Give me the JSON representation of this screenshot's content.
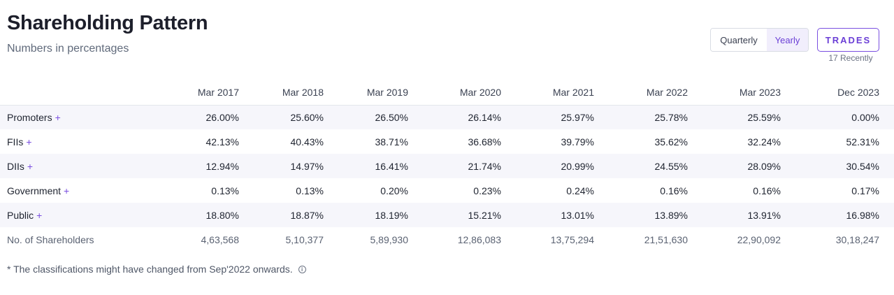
{
  "header": {
    "title": "Shareholding Pattern",
    "subtitle": "Numbers in percentages"
  },
  "toggle": {
    "options": [
      "Quarterly",
      "Yearly"
    ],
    "selected": "Yearly"
  },
  "trades": {
    "label": "TRADES",
    "note": "17 Recently"
  },
  "table": {
    "columns": [
      "",
      "Mar 2017",
      "Mar 2018",
      "Mar 2019",
      "Mar 2020",
      "Mar 2021",
      "Mar 2022",
      "Mar 2023",
      "Dec 2023"
    ],
    "rows": [
      {
        "label": "Promoters",
        "plus": "+",
        "values": [
          "26.00%",
          "25.60%",
          "26.50%",
          "26.14%",
          "25.97%",
          "25.78%",
          "25.59%",
          "0.00%"
        ]
      },
      {
        "label": "FIIs",
        "plus": "+",
        "values": [
          "42.13%",
          "40.43%",
          "38.71%",
          "36.68%",
          "39.79%",
          "35.62%",
          "32.24%",
          "52.31%"
        ]
      },
      {
        "label": "DIIs",
        "plus": "+",
        "values": [
          "12.94%",
          "14.97%",
          "16.41%",
          "21.74%",
          "20.99%",
          "24.55%",
          "28.09%",
          "30.54%"
        ]
      },
      {
        "label": "Government",
        "plus": "+",
        "values": [
          "0.13%",
          "0.13%",
          "0.20%",
          "0.23%",
          "0.24%",
          "0.16%",
          "0.16%",
          "0.17%"
        ]
      },
      {
        "label": "Public",
        "plus": "+",
        "values": [
          "18.80%",
          "18.87%",
          "18.19%",
          "15.21%",
          "13.01%",
          "13.89%",
          "13.91%",
          "16.98%"
        ]
      },
      {
        "label": "No. of Shareholders",
        "values": [
          "4,63,568",
          "5,10,377",
          "5,89,930",
          "12,86,083",
          "13,75,294",
          "21,51,630",
          "22,90,092",
          "30,18,247"
        ]
      }
    ]
  },
  "footnote": "* The classifications might have changed from Sep'2022 onwards.",
  "icons": {
    "footnote_info": "info-icon"
  }
}
